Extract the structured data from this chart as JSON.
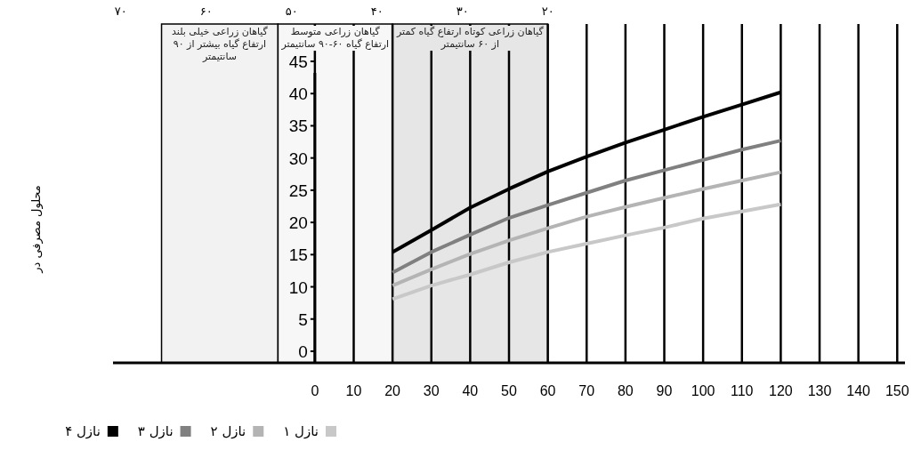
{
  "chart_data": {
    "type": "line",
    "annotations": [
      "محلول مصرفی در"
    ],
    "x": [
      20,
      30,
      40,
      50,
      60,
      70,
      80,
      90,
      100,
      110,
      120
    ],
    "xlim": [
      -52,
      152
    ],
    "xticks": [
      0,
      10,
      20,
      30,
      40,
      50,
      60,
      70,
      80,
      90,
      100,
      110,
      120,
      130,
      140,
      150
    ],
    "ylim": [
      -1.8,
      50.8
    ],
    "yticks": [
      0,
      5,
      10,
      15,
      20,
      25,
      30,
      35,
      40,
      45
    ],
    "x2lim": [
      70.9,
      -21.8
    ],
    "x2ticks": [
      {
        "value": 70,
        "label": "۷۰"
      },
      {
        "value": 60,
        "label": "۶۰"
      },
      {
        "value": 50,
        "label": "۵۰"
      },
      {
        "value": 40,
        "label": "۴۰"
      },
      {
        "value": 30,
        "label": "۳۰"
      },
      {
        "value": 20,
        "label": "۲۰"
      }
    ],
    "grid": "x",
    "legend": "bottom",
    "line_style": "solid",
    "marker": "none",
    "series": [
      {
        "name": "نازل ۱",
        "color": "#c8c8c8",
        "values": [
          8.1,
          10.2,
          11.9,
          13.8,
          15.4,
          16.7,
          18.0,
          19.2,
          20.6,
          21.7,
          22.8
        ]
      },
      {
        "name": "نازل ۲",
        "color": "#b4b4b4",
        "values": [
          10.2,
          12.7,
          15.1,
          17.2,
          19.1,
          20.9,
          22.4,
          23.8,
          25.2,
          26.5,
          27.8
        ]
      },
      {
        "name": "نازل ۳",
        "color": "#808080",
        "values": [
          12.2,
          15.4,
          18.1,
          20.7,
          22.7,
          24.6,
          26.5,
          28.1,
          29.7,
          31.3,
          32.7
        ]
      },
      {
        "name": "نازل ۴",
        "color": "#000000",
        "values": [
          15.4,
          18.8,
          22.3,
          25.2,
          27.9,
          30.2,
          32.4,
          34.4,
          36.4,
          38.3,
          40.2
        ]
      }
    ],
    "bands": [
      {
        "axis": "x",
        "from": -39.5,
        "to": -9.5,
        "label": "گیاهان زراعی خیلی بلند ارتفاع گیاه بیشتر از ۹۰ سانتیمتر",
        "color": "#f2f2f2"
      },
      {
        "axis": "x",
        "from": -9.5,
        "to": 20,
        "label": "گیاهان زراعی متوسط ارتفاع گیاه ۶۰-۹۰ سانتیمتر",
        "color": "#f7f7f7"
      },
      {
        "axis": "x",
        "from": 20,
        "to": 60,
        "label": "گیاهان زراعی کوتاه ارتفاع گیاه کمتر از ۶۰ سانتیمتر",
        "color": "#e6e6e6"
      }
    ]
  }
}
